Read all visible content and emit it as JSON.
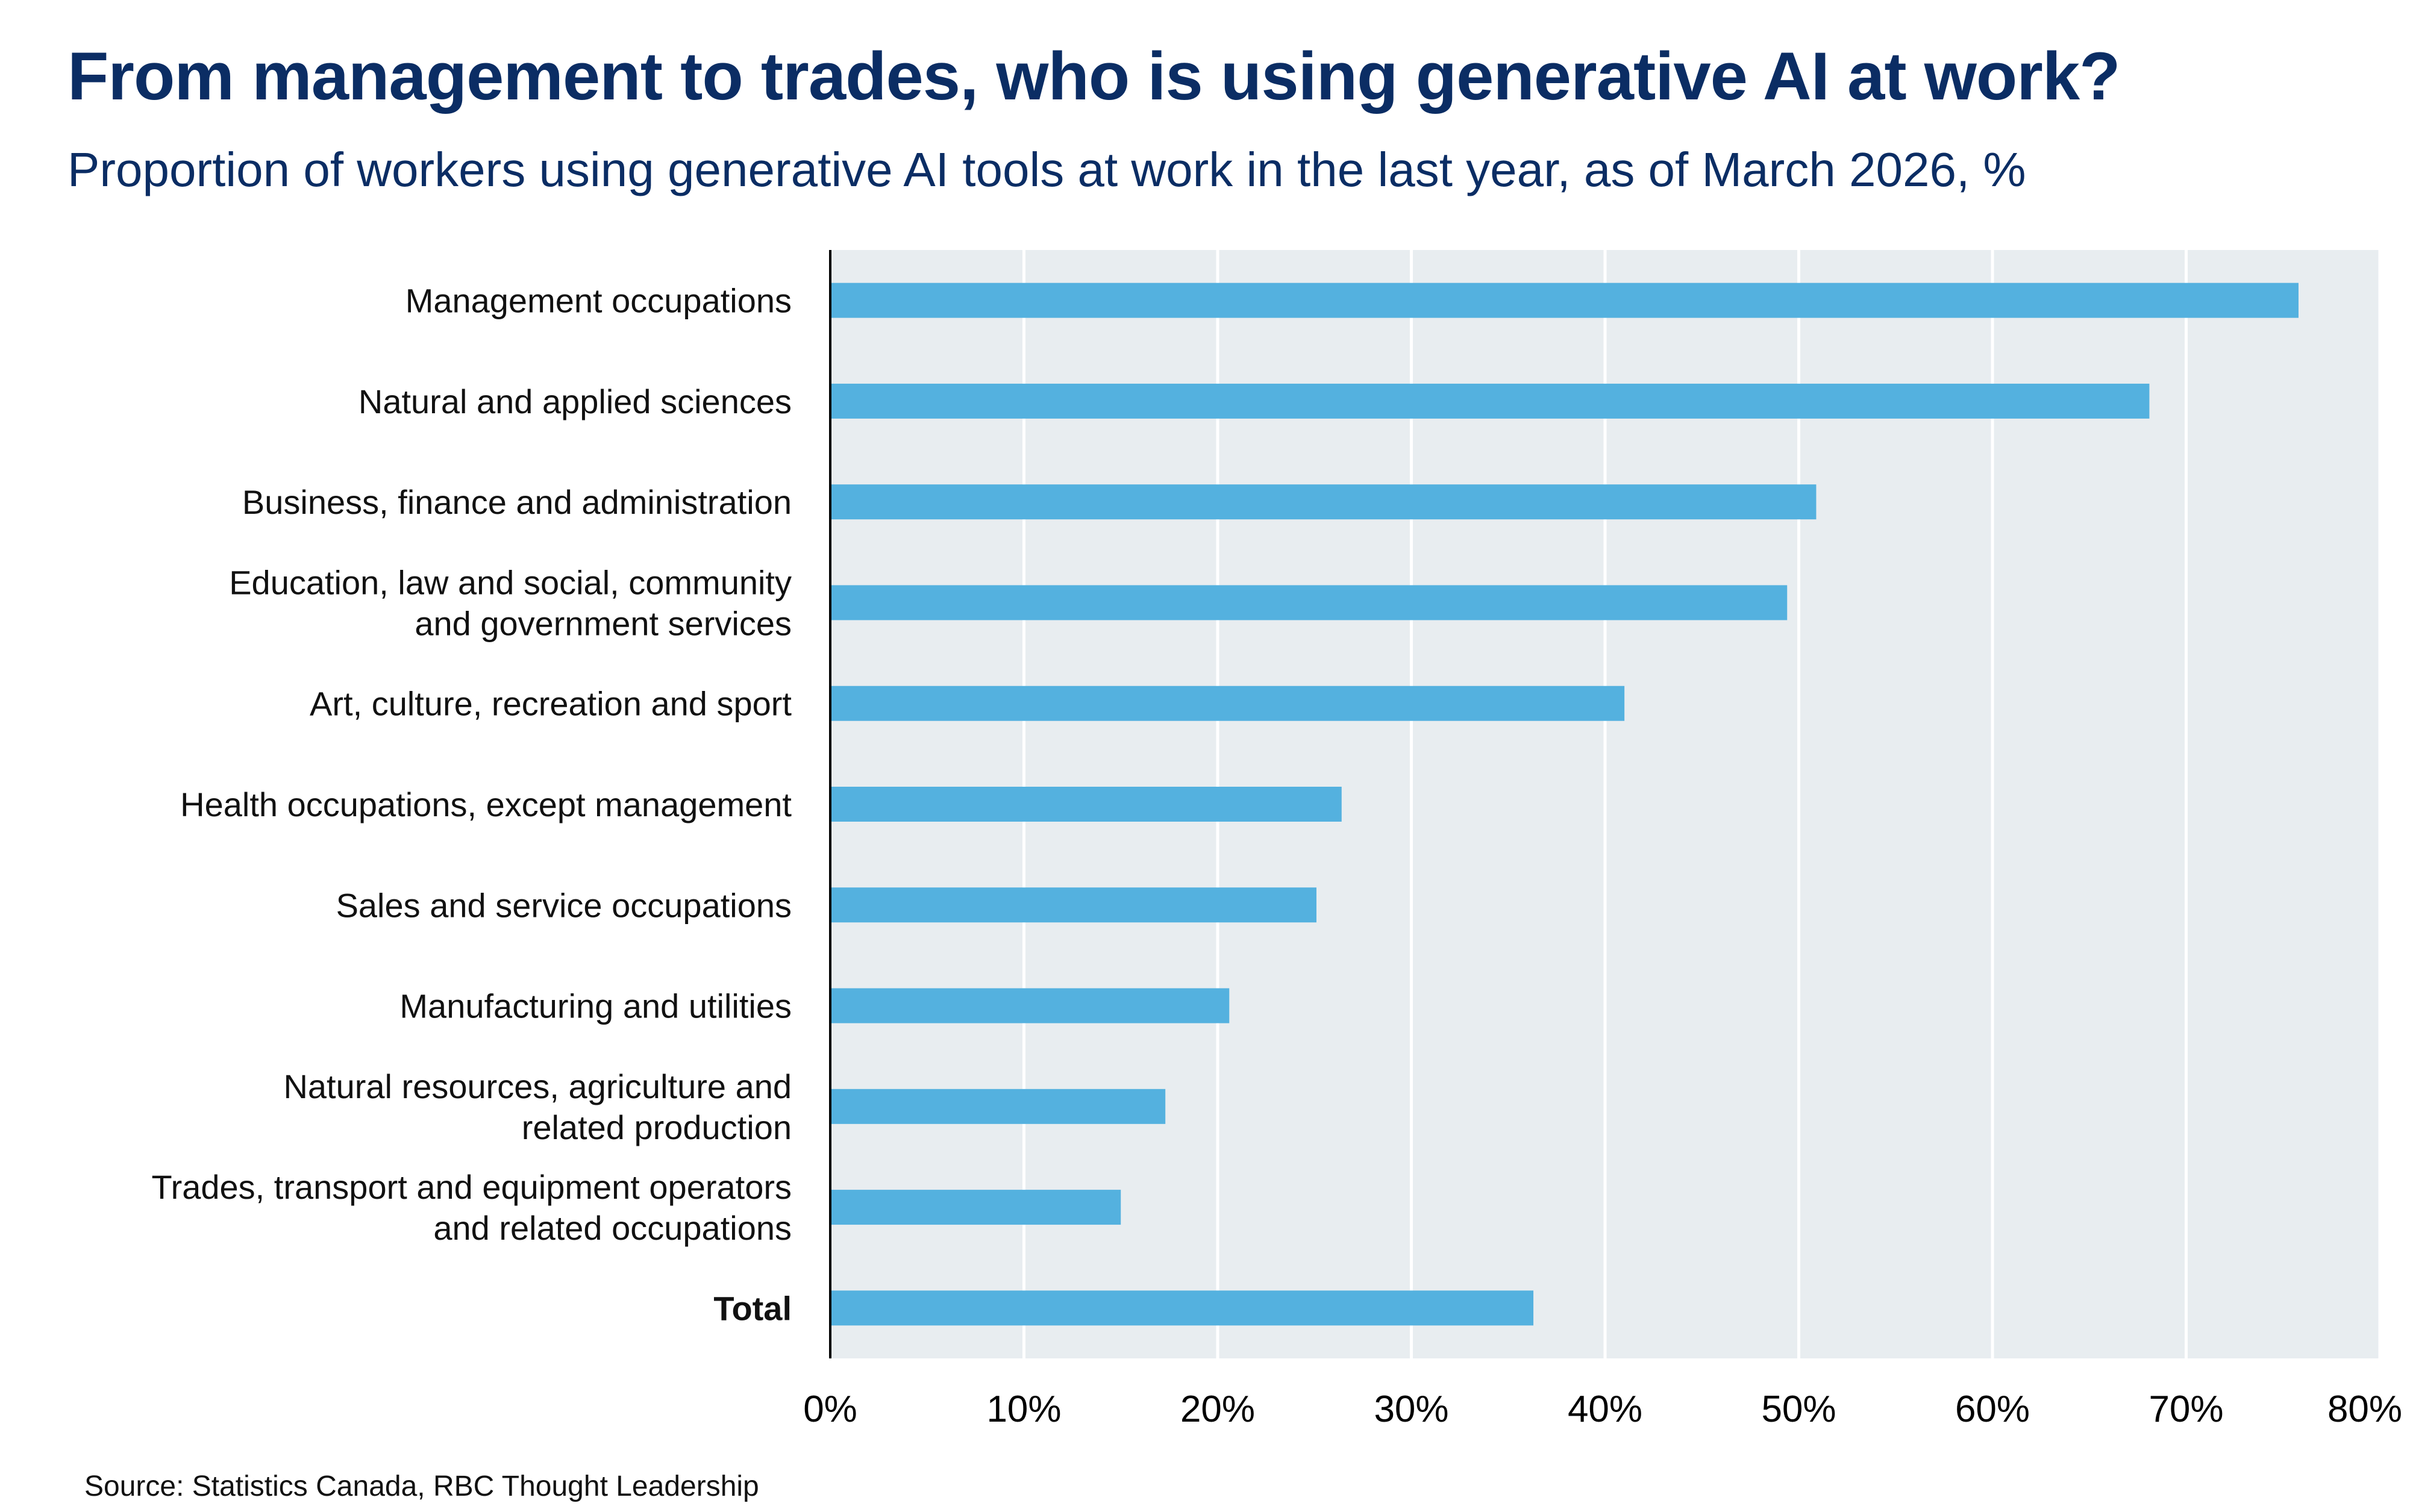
{
  "colors": {
    "title": "#0b2d64",
    "bar": "#54b1df",
    "plot_background": "#e8edf0",
    "gridline": "#ffffff"
  },
  "chart_data": {
    "type": "bar",
    "orientation": "horizontal",
    "title": "From management to trades, who is using generative AI at work?",
    "subtitle": "Proportion of workers using generative AI tools at work in the last year, as of March 2026, %",
    "categories": [
      [
        "Management occupations"
      ],
      [
        "Natural and applied sciences"
      ],
      [
        "Business, finance and administration"
      ],
      [
        "Education, law and social, community",
        "and government services"
      ],
      [
        "Art, culture, recreation and sport"
      ],
      [
        "Health occupations, except management"
      ],
      [
        "Sales and service occupations"
      ],
      [
        "Manufacturing and utilities"
      ],
      [
        "Natural resources, agriculture and",
        "related production"
      ],
      [
        "Trades, transport and equipment operators",
        "and related occupations"
      ],
      [
        "Total"
      ]
    ],
    "values": [
      75.8,
      68.1,
      50.9,
      49.4,
      41.0,
      26.4,
      25.1,
      20.6,
      17.3,
      15.0,
      36.3
    ],
    "xlim": [
      0,
      80
    ],
    "xticks": [
      "0%",
      "10%",
      "20%",
      "30%",
      "40%",
      "50%",
      "60%",
      "70%",
      "80%"
    ],
    "grid": true,
    "legend": "none",
    "source": "Source: Statistics Canada, RBC Thought Leadership"
  }
}
